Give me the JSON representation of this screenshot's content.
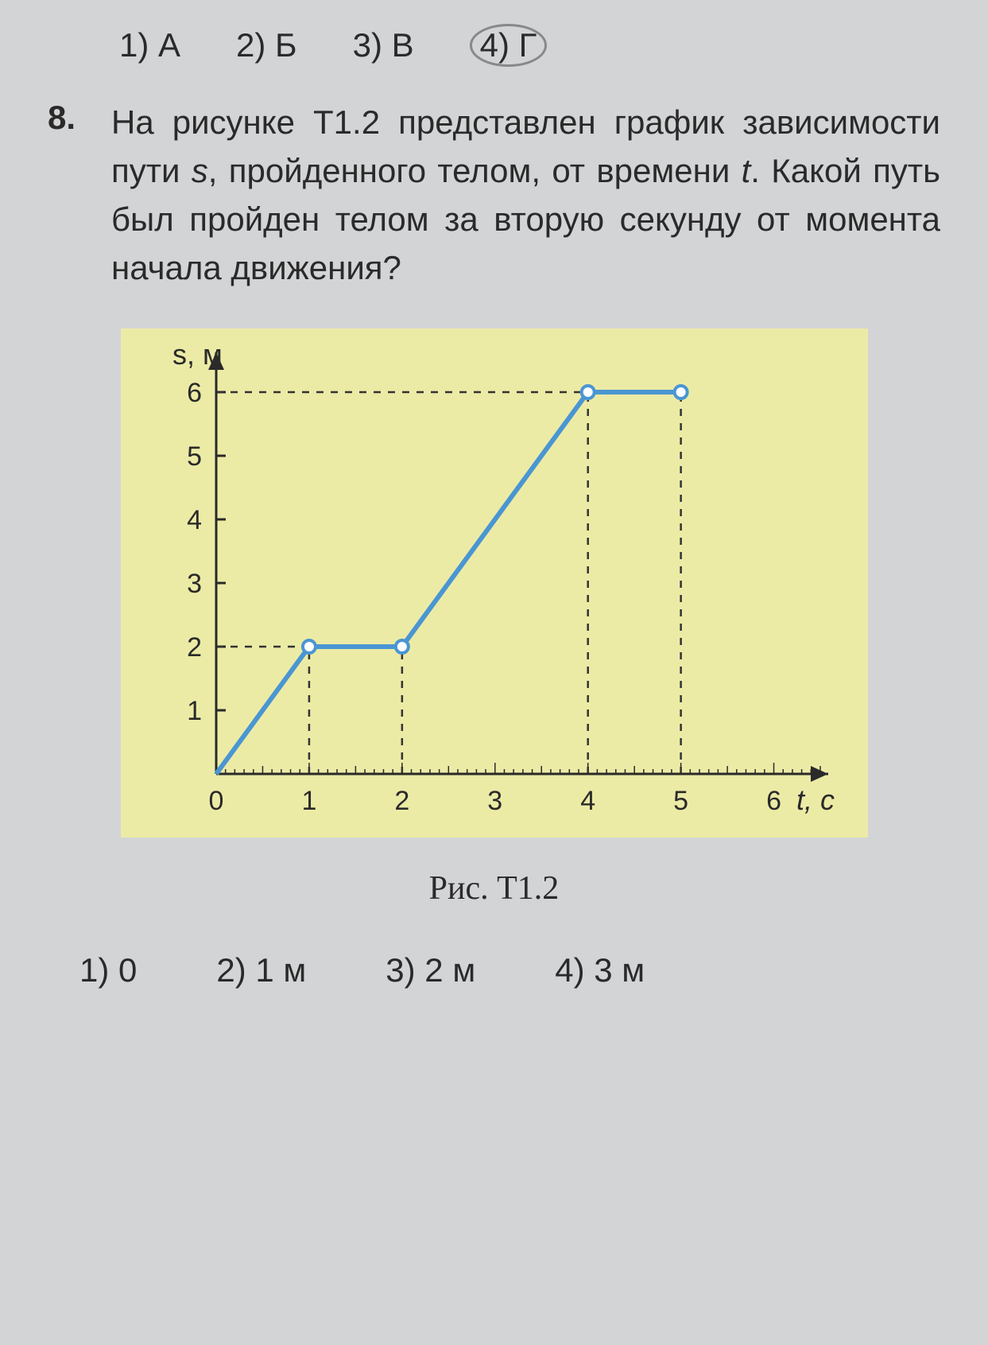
{
  "prev_answers": {
    "items": [
      "1) А",
      "2) Б",
      "3) В",
      "4) Г"
    ],
    "circled_index": 3
  },
  "question": {
    "number": "8.",
    "text_before_s": "На рисунке Т1.2 представлен график за­висимости пути ",
    "s": "s",
    "text_mid": ", пройденного телом, от времени ",
    "t": "t",
    "text_after_t": ". Какой путь был пройден те­лом за вторую секунду от момента нача­ла движения?"
  },
  "chart": {
    "type": "line",
    "ylabel": "s, м",
    "xlabel": "t, с",
    "xlim": [
      0,
      6.5
    ],
    "ylim": [
      0,
      6.5
    ],
    "xticks": [
      0,
      1,
      2,
      3,
      4,
      5,
      6
    ],
    "yticks": [
      1,
      2,
      3,
      4,
      5,
      6
    ],
    "series": {
      "points": [
        [
          0,
          0
        ],
        [
          1,
          2
        ],
        [
          2,
          2
        ],
        [
          4,
          6
        ],
        [
          5,
          6
        ]
      ],
      "color": "#4a96d2",
      "width": 6,
      "marker_at": [
        [
          1,
          2
        ],
        [
          2,
          2
        ],
        [
          4,
          6
        ],
        [
          5,
          6
        ]
      ],
      "marker_fill": "#ffffff",
      "marker_stroke": "#4a96d2",
      "marker_r": 8
    },
    "guides": [
      {
        "from": [
          1,
          0
        ],
        "to": [
          1,
          2
        ]
      },
      {
        "from": [
          2,
          0
        ],
        "to": [
          2,
          2
        ]
      },
      {
        "from": [
          0,
          2
        ],
        "to": [
          1,
          2
        ]
      },
      {
        "from": [
          4,
          0
        ],
        "to": [
          4,
          6
        ]
      },
      {
        "from": [
          5,
          0
        ],
        "to": [
          5,
          6
        ]
      },
      {
        "from": [
          0,
          6
        ],
        "to": [
          4,
          6
        ]
      }
    ],
    "guide_color": "#333333",
    "guide_dash": "9,9",
    "background": "#eceba6",
    "plot_bg": "#eceba6",
    "axis_color": "#2a2a2a",
    "tick_fontsize": 34,
    "label_fontsize": 36
  },
  "caption": "Рис. Т1.2",
  "answers": {
    "items": [
      "1) 0",
      "2) 1 м",
      "3) 2 м",
      "4) 3 м"
    ]
  }
}
